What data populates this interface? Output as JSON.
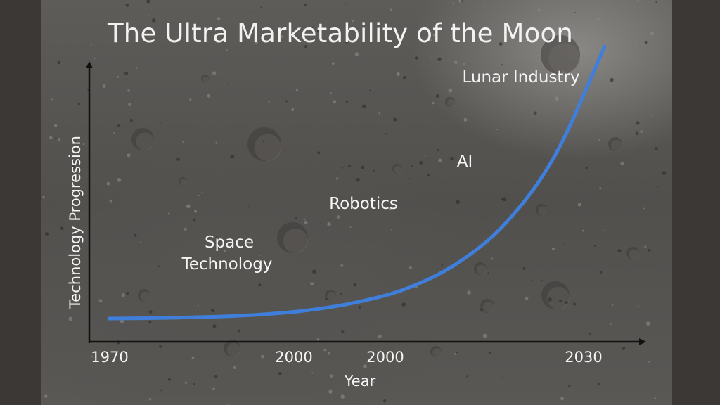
{
  "chart_data": {
    "type": "line",
    "title": "The Ultra Marketability of the Moon",
    "xlabel": "Year",
    "ylabel": "Technology Progression",
    "x_tick_labels": [
      "1970",
      "2000",
      "2000",
      "2030"
    ],
    "series": [
      {
        "color": "#3f7fdb",
        "x": [
          0,
          0.1,
          0.2,
          0.3,
          0.4,
          0.5,
          0.6,
          0.7,
          0.8,
          0.9,
          1.0
        ],
        "y": [
          0,
          0.002,
          0.006,
          0.014,
          0.03,
          0.06,
          0.11,
          0.2,
          0.35,
          0.6,
          1.0
        ]
      }
    ],
    "annotations": [
      {
        "text": "Space"
      },
      {
        "text": "Technology"
      },
      {
        "text": "Robotics"
      },
      {
        "text": "AI"
      },
      {
        "text": "Lunar Industry"
      }
    ],
    "grid": false,
    "legend": "none"
  }
}
